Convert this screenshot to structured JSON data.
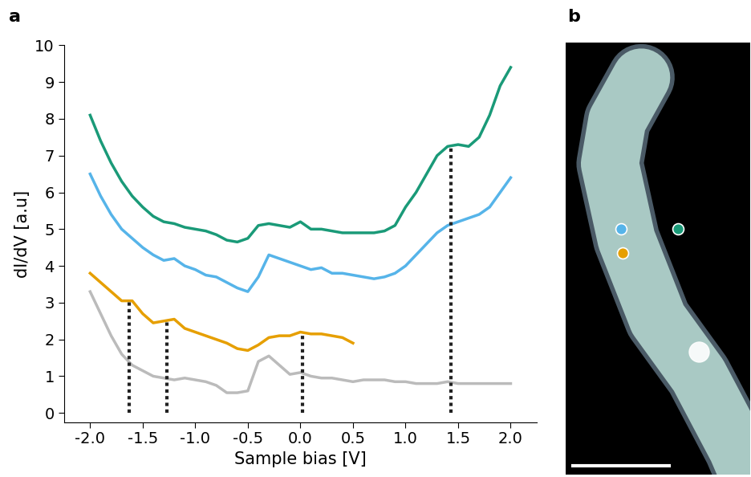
{
  "chart_data": {
    "type": "line",
    "panel_labels": [
      "a",
      "b"
    ],
    "x_label": "Sample bias [V]",
    "y_label": "dI/dV [a.u]",
    "xlim": [
      -2.25,
      2.25
    ],
    "xticks": [
      -2.0,
      -1.5,
      -1.0,
      -0.5,
      0.0,
      0.5,
      1.0,
      1.5,
      2.0
    ],
    "ylim": [
      -0.25,
      10
    ],
    "yticks": [
      0,
      1,
      2,
      3,
      4,
      5,
      6,
      7,
      8,
      9,
      10
    ],
    "grid": false,
    "series": [
      {
        "color": "#1a9a78",
        "x": [
          -2.0,
          -1.9,
          -1.8,
          -1.7,
          -1.6,
          -1.5,
          -1.4,
          -1.3,
          -1.2,
          -1.1,
          -1.0,
          -0.9,
          -0.8,
          -0.7,
          -0.6,
          -0.5,
          -0.4,
          -0.3,
          -0.2,
          -0.1,
          0.0,
          0.1,
          0.2,
          0.3,
          0.4,
          0.5,
          0.6,
          0.7,
          0.8,
          0.9,
          1.0,
          1.1,
          1.2,
          1.3,
          1.4,
          1.5,
          1.6,
          1.7,
          1.8,
          1.9,
          2.0
        ],
        "values": [
          8.1,
          7.4,
          6.8,
          6.3,
          5.9,
          5.6,
          5.35,
          5.2,
          5.15,
          5.05,
          5.0,
          4.95,
          4.85,
          4.7,
          4.65,
          4.75,
          5.1,
          5.15,
          5.1,
          5.05,
          5.2,
          5.0,
          5.0,
          4.95,
          4.9,
          4.9,
          4.9,
          4.9,
          4.95,
          5.1,
          5.6,
          6.0,
          6.5,
          7.0,
          7.25,
          7.3,
          7.25,
          7.5,
          8.1,
          8.9,
          9.4
        ]
      },
      {
        "color": "#56b4e9",
        "x": [
          -2.0,
          -1.9,
          -1.8,
          -1.7,
          -1.6,
          -1.5,
          -1.4,
          -1.3,
          -1.2,
          -1.1,
          -1.0,
          -0.9,
          -0.8,
          -0.7,
          -0.6,
          -0.5,
          -0.4,
          -0.3,
          -0.2,
          -0.1,
          0.0,
          0.1,
          0.2,
          0.3,
          0.4,
          0.5,
          0.6,
          0.7,
          0.8,
          0.9,
          1.0,
          1.1,
          1.2,
          1.3,
          1.4,
          1.5,
          1.6,
          1.7,
          1.8,
          1.9,
          2.0
        ],
        "values": [
          6.5,
          5.9,
          5.4,
          5.0,
          4.75,
          4.5,
          4.3,
          4.15,
          4.2,
          4.0,
          3.9,
          3.75,
          3.7,
          3.55,
          3.4,
          3.3,
          3.7,
          4.3,
          4.2,
          4.1,
          4.0,
          3.9,
          3.95,
          3.8,
          3.8,
          3.75,
          3.7,
          3.65,
          3.7,
          3.8,
          4.0,
          4.3,
          4.6,
          4.9,
          5.1,
          5.2,
          5.3,
          5.4,
          5.6,
          6.0,
          6.4
        ]
      },
      {
        "color": "#e69f00",
        "x": [
          -2.0,
          -1.9,
          -1.8,
          -1.7,
          -1.6,
          -1.5,
          -1.4,
          -1.3,
          -1.2,
          -1.1,
          -1.0,
          -0.9,
          -0.8,
          -0.7,
          -0.6,
          -0.5,
          -0.4,
          -0.3,
          -0.2,
          -0.1,
          0.0,
          0.1,
          0.2,
          0.3,
          0.4,
          0.5
        ],
        "values": [
          3.8,
          3.55,
          3.3,
          3.05,
          3.05,
          2.7,
          2.45,
          2.5,
          2.55,
          2.3,
          2.2,
          2.1,
          2.0,
          1.9,
          1.75,
          1.7,
          1.85,
          2.05,
          2.1,
          2.1,
          2.2,
          2.15,
          2.15,
          2.1,
          2.05,
          1.9
        ]
      },
      {
        "color": "#bbbbbb",
        "x": [
          -2.0,
          -1.9,
          -1.8,
          -1.7,
          -1.6,
          -1.5,
          -1.4,
          -1.3,
          -1.2,
          -1.1,
          -1.0,
          -0.9,
          -0.8,
          -0.7,
          -0.6,
          -0.5,
          -0.4,
          -0.3,
          -0.2,
          -0.1,
          0.0,
          0.1,
          0.2,
          0.3,
          0.4,
          0.5,
          0.6,
          0.7,
          0.8,
          0.9,
          1.0,
          1.1,
          1.2,
          1.3,
          1.4,
          1.5,
          1.6,
          1.7,
          1.8,
          1.9,
          2.0
        ],
        "values": [
          3.3,
          2.7,
          2.1,
          1.6,
          1.3,
          1.15,
          1.0,
          0.95,
          0.9,
          0.95,
          0.9,
          0.85,
          0.75,
          0.55,
          0.55,
          0.6,
          1.4,
          1.55,
          1.3,
          1.05,
          1.1,
          1.0,
          0.95,
          0.95,
          0.9,
          0.85,
          0.9,
          0.9,
          0.9,
          0.85,
          0.85,
          0.8,
          0.8,
          0.8,
          0.85,
          0.8,
          0.8,
          0.8,
          0.8,
          0.8,
          0.8
        ]
      }
    ],
    "vlines": [
      {
        "x": -1.63,
        "top": 3.05
      },
      {
        "x": -1.27,
        "top": 2.5
      },
      {
        "x": 0.02,
        "top": 2.2
      },
      {
        "x": 1.43,
        "top": 7.25
      }
    ]
  }
}
